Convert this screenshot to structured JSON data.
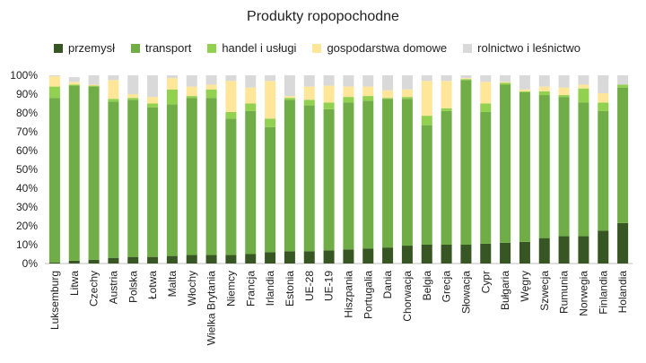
{
  "chart_data": {
    "type": "bar",
    "stacked": true,
    "title": "Produkty ropopochodne",
    "xlabel": "",
    "ylabel": "",
    "ylim": [
      0,
      100
    ],
    "yticks": [
      "0%",
      "10%",
      "20%",
      "30%",
      "40%",
      "50%",
      "60%",
      "70%",
      "80%",
      "90%",
      "100%"
    ],
    "legend_position": "top",
    "categories": [
      "Luksemburg",
      "Litwa",
      "Czechy",
      "Austria",
      "Polska",
      "Łotwa",
      "Malta",
      "Włochy",
      "Wielka Brytania",
      "Niemcy",
      "Francja",
      "Irlandia",
      "Estonia",
      "UE-28",
      "UE-19",
      "Hiszpania",
      "Portugalia",
      "Dania",
      "Chorwacja",
      "Belgia",
      "Grecja",
      "Słowacja",
      "Cypr",
      "Bułgaria",
      "Węgry",
      "Szwecja",
      "Rumunia",
      "Norwegia",
      "Finlandia",
      "Holandia"
    ],
    "series": [
      {
        "name": "przemysł",
        "color": "#375623",
        "values": [
          0.5,
          1.5,
          2,
          3,
          3.5,
          3.5,
          4,
          4.5,
          4.5,
          4.5,
          5,
          6,
          6.5,
          6.5,
          7,
          7.5,
          8,
          8.5,
          9.5,
          10,
          10,
          10,
          10.5,
          11,
          11.5,
          13.5,
          14.5,
          14.5,
          17.5,
          21.5
        ]
      },
      {
        "name": "transport",
        "color": "#70AD47",
        "values": [
          87.5,
          93,
          92,
          83,
          83.5,
          79.5,
          80.5,
          83.5,
          83.5,
          72.5,
          76,
          66.5,
          80.5,
          77.5,
          75,
          78,
          78.5,
          79,
          78,
          63.5,
          71,
          87.5,
          70,
          84,
          79.5,
          76,
          74,
          71,
          63.5,
          72
        ]
      },
      {
        "name": "handel i usługi",
        "color": "#92D050",
        "values": [
          6,
          0.5,
          0.5,
          1.5,
          1,
          2,
          8,
          1,
          4.5,
          3.5,
          4,
          4.5,
          1,
          3,
          3.5,
          3,
          2.5,
          0.5,
          1,
          5,
          1.5,
          0.5,
          4.5,
          1,
          0.5,
          2,
          1,
          7.5,
          4.5,
          1.5
        ]
      },
      {
        "name": "gospodarstwa domowe",
        "color": "#FFE699",
        "values": [
          5.5,
          1.5,
          0.5,
          10,
          2,
          3.5,
          6,
          5,
          2.5,
          16.5,
          8.5,
          20,
          1,
          7,
          9,
          5.5,
          5,
          4,
          4,
          18.5,
          14.5,
          0.5,
          11.5,
          0.5,
          1,
          2.5,
          4,
          2,
          5,
          0
        ]
      },
      {
        "name": "rolnictwo i leśnictwo",
        "color": "#D9D9D9",
        "values": [
          0.5,
          2.5,
          5,
          2.5,
          10,
          11.5,
          1.5,
          6,
          5,
          3,
          6.5,
          3,
          11,
          6,
          5.5,
          6,
          6,
          8,
          7.5,
          3,
          3,
          1.5,
          3.5,
          3.5,
          7.5,
          6,
          6.5,
          5,
          9.5,
          5
        ]
      }
    ]
  }
}
